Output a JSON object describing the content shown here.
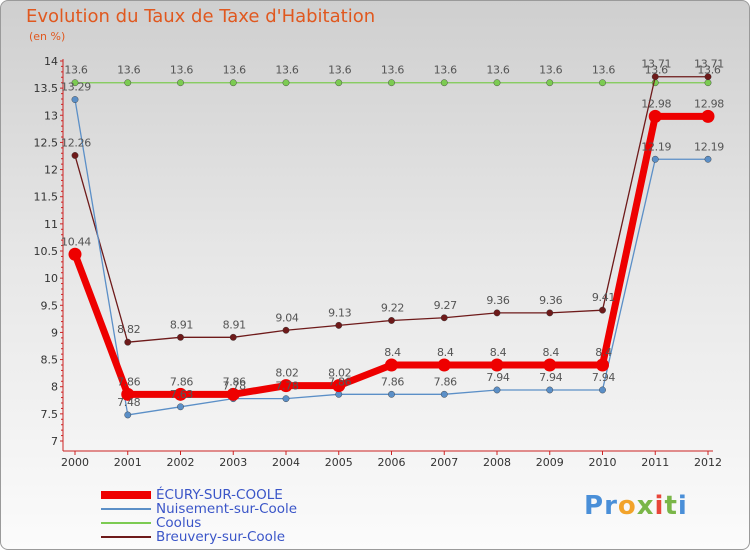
{
  "chart_data": {
    "type": "line",
    "title": "Evolution du Taux de Taxe d'Habitation",
    "unit_label": "(en %)",
    "x": [
      "2000",
      "2001",
      "2002",
      "2003",
      "2004",
      "2005",
      "2006",
      "2007",
      "2008",
      "2009",
      "2010",
      "2011",
      "2012"
    ],
    "ylim": [
      7,
      14
    ],
    "y_ticks": [
      "7",
      "7.5",
      "8",
      "8.5",
      "9",
      "9.5",
      "10",
      "10.5",
      "11",
      "11.5",
      "12",
      "12.5",
      "13",
      "13.5",
      "14"
    ],
    "grid": false,
    "legend_position": "bottom-left",
    "series": [
      {
        "name": "ÉCURY-SUR-COOLE",
        "color": "#ee0000",
        "values": [
          10.44,
          7.86,
          7.86,
          7.86,
          8.02,
          8.02,
          8.4,
          8.4,
          8.4,
          8.4,
          8.4,
          12.98,
          12.98
        ],
        "labels": [
          "10.44",
          "7.86",
          "7.86",
          "7.86",
          "8.02",
          "8.02",
          "8.4",
          "8.4",
          "8.4",
          "8.4",
          "8.4",
          "12.98",
          "12.98"
        ]
      },
      {
        "name": "Nuisement-sur-Coole",
        "color": "#5b8fc7",
        "values": [
          13.29,
          7.48,
          7.63,
          7.78,
          7.78,
          7.86,
          7.86,
          7.86,
          7.94,
          7.94,
          7.94,
          12.19,
          12.19
        ],
        "labels": [
          "13.29",
          "7.48",
          "7.63",
          "7.78",
          "7.78",
          "7.86",
          "7.86",
          "7.86",
          "7.94",
          "7.94",
          "7.94",
          "12.19",
          "12.19"
        ]
      },
      {
        "name": "Coolus",
        "color": "#7ccb52",
        "values": [
          13.6,
          13.6,
          13.6,
          13.6,
          13.6,
          13.6,
          13.6,
          13.6,
          13.6,
          13.6,
          13.6,
          13.6,
          13.6
        ],
        "labels": [
          "13.6",
          "13.6",
          "13.6",
          "13.6",
          "13.6",
          "13.6",
          "13.6",
          "13.6",
          "13.6",
          "13.6",
          "13.6",
          "13.6",
          "13.6"
        ]
      },
      {
        "name": "Breuvery-sur-Coole",
        "color": "#6e1a1a",
        "values": [
          12.26,
          8.82,
          8.91,
          8.91,
          9.04,
          9.13,
          9.22,
          9.27,
          9.36,
          9.36,
          9.41,
          13.71,
          13.71
        ],
        "labels": [
          "12.26",
          "8.82",
          "8.91",
          "8.91",
          "9.04",
          "9.13",
          "9.22",
          "9.27",
          "9.36",
          "9.36",
          "9.41",
          "13.71",
          "13.71"
        ]
      }
    ]
  },
  "logo": {
    "letters": [
      "P",
      "r",
      "o",
      "x",
      "i",
      "t",
      "i"
    ],
    "colors": [
      "#4a8fd8",
      "#4a8fd8",
      "#f2a32a",
      "#7ab648",
      "#e8463a",
      "#7ab648",
      "#4a8fd8"
    ]
  }
}
